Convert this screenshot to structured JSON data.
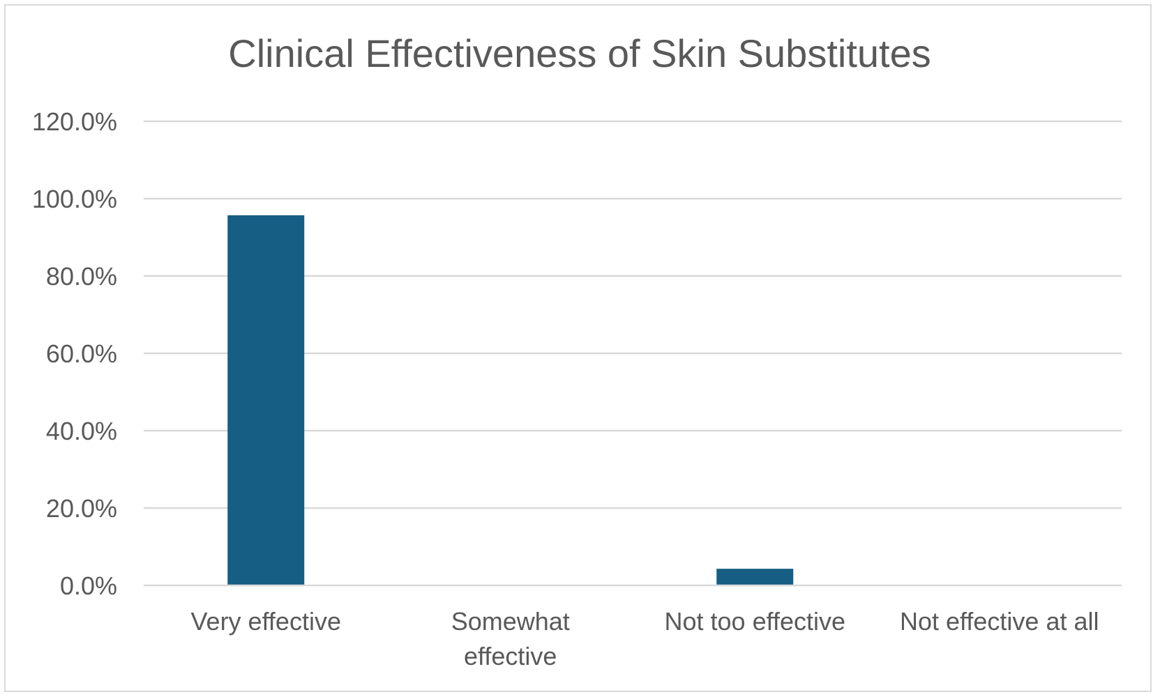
{
  "chart_data": {
    "type": "bar",
    "title": "Clinical Effectiveness of Skin Substitutes",
    "xlabel": "",
    "ylabel": "",
    "categories": [
      "Very effective",
      "Somewhat effective",
      "Not too effective",
      "Not effective at all"
    ],
    "category_lines": [
      [
        "Very effective"
      ],
      [
        "Somewhat",
        "effective"
      ],
      [
        "Not too effective"
      ],
      [
        "Not effective at all"
      ]
    ],
    "series": [
      {
        "values": [
          95.7,
          0.0,
          4.3,
          0.0
        ]
      }
    ],
    "ylim": [
      0,
      120
    ],
    "yticks": [
      0,
      20,
      40,
      60,
      80,
      100,
      120
    ],
    "ytick_labels": [
      "0.0%",
      "20.0%",
      "40.0%",
      "60.0%",
      "80.0%",
      "100.0%",
      "120.0%"
    ],
    "grid": true,
    "legend": "none",
    "colors": {
      "bar": "#165e83",
      "grid": "#d9d9d9",
      "text": "#595959",
      "border": "#d9d9d9"
    }
  }
}
